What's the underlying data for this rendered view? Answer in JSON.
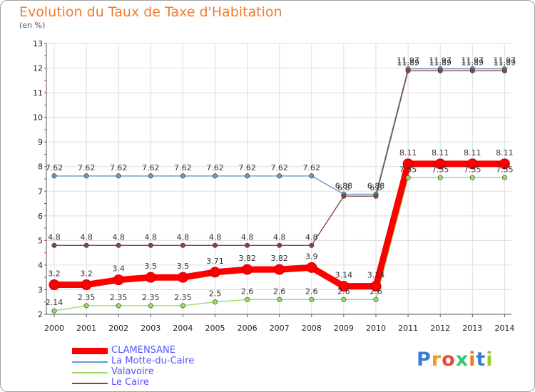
{
  "chart_data": {
    "type": "line",
    "title": "Evolution du Taux de Taxe d'Habitation",
    "unit_label": "(en %)",
    "x": [
      "2000",
      "2001",
      "2002",
      "2003",
      "2004",
      "2005",
      "2006",
      "2007",
      "2008",
      "2009",
      "2010",
      "2011",
      "2012",
      "2013",
      "2014"
    ],
    "ylim": [
      2,
      13
    ],
    "yticks": [
      "2",
      "3",
      "4",
      "5",
      "6",
      "7",
      "8",
      "9",
      "10",
      "11",
      "12",
      "13"
    ],
    "grid": true,
    "series": [
      {
        "name": "CLAMENSANE",
        "color": "#ff0000",
        "values": [
          3.2,
          3.2,
          3.4,
          3.5,
          3.5,
          3.71,
          3.82,
          3.82,
          3.9,
          3.14,
          3.14,
          8.11,
          8.11,
          8.11,
          8.11
        ],
        "labels": [
          "3.2",
          "3.2",
          "3.4",
          "3.5",
          "3.5",
          "3.71",
          "3.82",
          "3.82",
          "3.9",
          "3.14",
          "3.14",
          "8.11",
          "8.11",
          "8.11",
          "8.11"
        ]
      },
      {
        "name": "La Motte-du-Caire",
        "color": "#6699cc",
        "values": [
          7.62,
          7.62,
          7.62,
          7.62,
          7.62,
          7.62,
          7.62,
          7.62,
          7.62,
          6.88,
          6.88,
          11.97,
          11.97,
          11.97,
          11.97
        ],
        "labels": [
          "7.62",
          "7.62",
          "7.62",
          "7.62",
          "7.62",
          "7.62",
          "7.62",
          "7.62",
          "7.62",
          "6.88",
          "6.88",
          "11.97",
          "11.97",
          "11.97",
          "11.97"
        ]
      },
      {
        "name": "Valavoire",
        "color": "#99dd66",
        "values": [
          2.14,
          2.35,
          2.35,
          2.35,
          2.35,
          2.5,
          2.6,
          2.6,
          2.6,
          2.6,
          2.6,
          7.55,
          7.55,
          7.55,
          7.55
        ],
        "labels": [
          "2.14",
          "2.35",
          "2.35",
          "2.35",
          "2.35",
          "2.5",
          "2.6",
          "2.6",
          "2.6",
          "2.6",
          "2.6",
          "7.55",
          "7.55",
          "7.55",
          "7.55"
        ]
      },
      {
        "name": "Le Caire",
        "color": "#884444",
        "values": [
          4.8,
          4.8,
          4.8,
          4.8,
          4.8,
          4.8,
          4.8,
          4.8,
          4.8,
          6.8,
          6.8,
          11.89,
          11.89,
          11.89,
          11.89
        ],
        "labels": [
          "4.8",
          "4.8",
          "4.8",
          "4.8",
          "4.8",
          "4.8",
          "4.8",
          "4.8",
          "4.8",
          "6.8",
          "6.8",
          "11.89",
          "11.89",
          "11.89",
          "11.89"
        ]
      }
    ]
  },
  "logo": {
    "text": "Proxiti"
  }
}
